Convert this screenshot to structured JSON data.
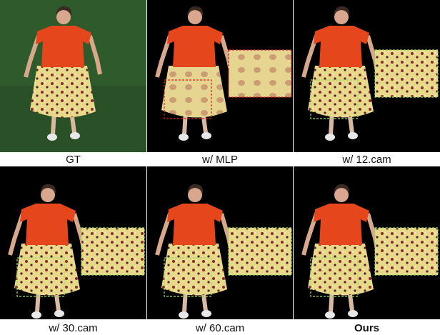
{
  "panels": [
    {
      "caption": "GT"
    },
    {
      "caption": "w/ MLP"
    },
    {
      "caption": "w/ 12.cam"
    },
    {
      "caption": "w/ 30.cam"
    },
    {
      "caption": "w/ 60.cam"
    },
    {
      "caption": "Ours"
    }
  ]
}
